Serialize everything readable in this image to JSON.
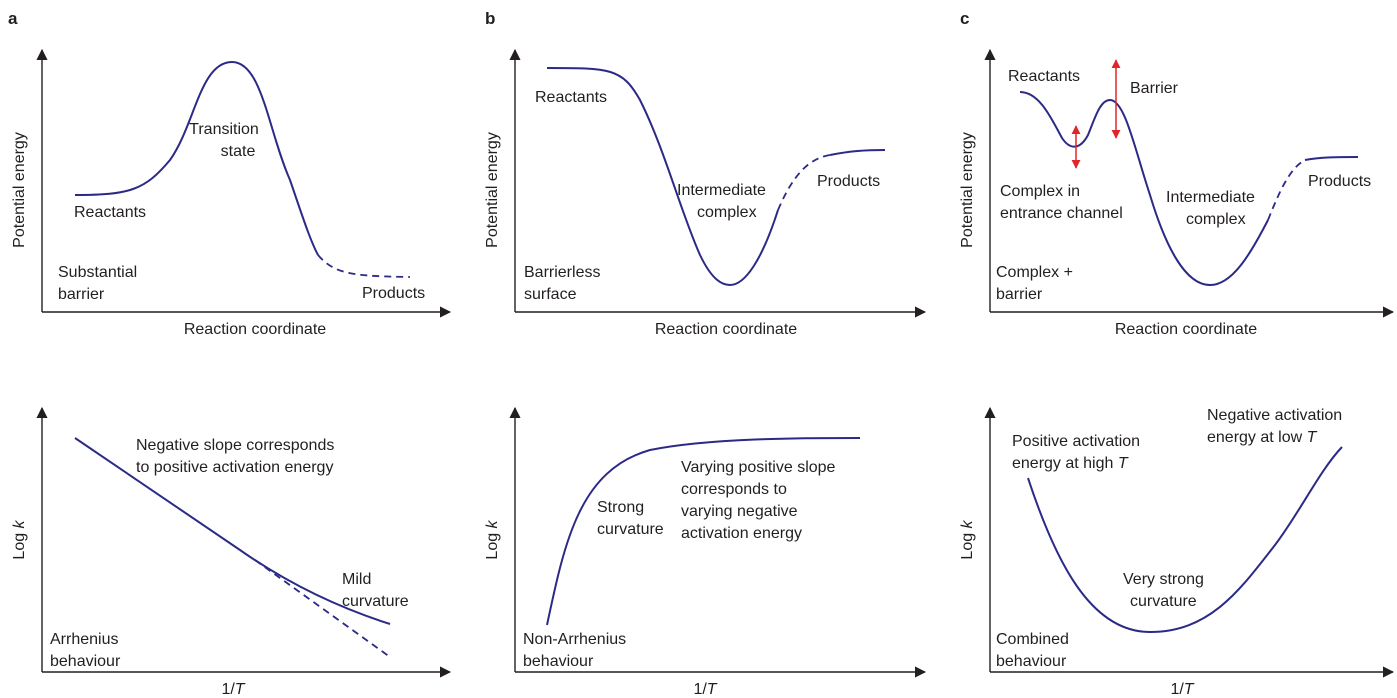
{
  "panels": {
    "a": {
      "letter": "a",
      "top": {
        "ylabel": "Potential energy",
        "xlabel": "Reaction coordinate",
        "reactants": "Reactants",
        "ts_line1": "Transition",
        "ts_line2": "state",
        "products": "Products",
        "corner_line1": "Substantial",
        "corner_line2": "barrier"
      },
      "bottom": {
        "ylabel_pre": "Log ",
        "ylabel_var": "k",
        "xlabel_pre": "1/",
        "xlabel_var": "T",
        "note_line1": "Negative slope corresponds",
        "note_line2": "to positive activation energy",
        "curv_line1": "Mild",
        "curv_line2": "curvature",
        "corner_line1": "Arrhenius",
        "corner_line2": "behaviour"
      }
    },
    "b": {
      "letter": "b",
      "top": {
        "ylabel": "Potential energy",
        "xlabel": "Reaction coordinate",
        "reactants": "Reactants",
        "int_line1": "Intermediate",
        "int_line2": "complex",
        "products": "Products",
        "corner_line1": "Barrierless",
        "corner_line2": "surface"
      },
      "bottom": {
        "ylabel_pre": "Log ",
        "ylabel_var": "k",
        "xlabel_pre": "1/",
        "xlabel_var": "T",
        "strong_line1": "Strong",
        "strong_line2": "curvature",
        "vary_line1": "Varying positive slope",
        "vary_line2": "corresponds to",
        "vary_line3": "varying negative",
        "vary_line4": "activation energy",
        "corner_line1": "Non-Arrhenius",
        "corner_line2": "behaviour"
      }
    },
    "c": {
      "letter": "c",
      "top": {
        "ylabel": "Potential energy",
        "xlabel": "Reaction coordinate",
        "reactants": "Reactants",
        "barrier": "Barrier",
        "cec_line1": "Complex in",
        "cec_line2": "entrance channel",
        "int_line1": "Intermediate",
        "int_line2": "complex",
        "products": "Products",
        "corner_line1": "Complex +",
        "corner_line2": "barrier"
      },
      "bottom": {
        "ylabel_pre": "Log ",
        "ylabel_var": "k",
        "xlabel_pre": "1/",
        "xlabel_var": "T",
        "pos_line1": "Positive activation",
        "pos_line2_pre": "energy at high ",
        "pos_line2_var": "T",
        "neg_line1": "Negative activation",
        "neg_line2_pre": "energy at low ",
        "neg_line2_var": "T",
        "vs_line1": "Very strong",
        "vs_line2": "curvature",
        "corner_line1": "Combined",
        "corner_line2": "behaviour"
      }
    }
  },
  "colors": {
    "curve": "#2b2a86",
    "arrows": "#e0262b",
    "text": "#231f20"
  }
}
